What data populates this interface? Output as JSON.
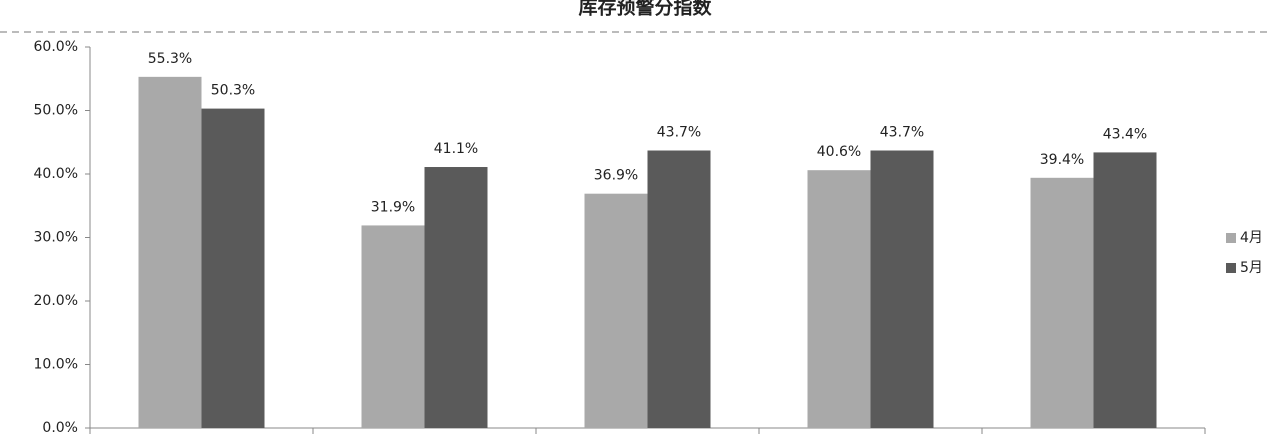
{
  "chart_data": {
    "type": "bar",
    "title": "库存预警分指数",
    "categories": [
      null,
      null,
      null,
      null,
      null
    ],
    "series": [
      {
        "name": "4月",
        "color": "#a9a9a9",
        "values": [
          55.3,
          31.9,
          36.9,
          40.6,
          39.4
        ],
        "value_labels": [
          "55.3%",
          "31.9%",
          "36.9%",
          "40.6%",
          "39.4%"
        ]
      },
      {
        "name": "5月",
        "color": "#5a5a5a",
        "values": [
          50.3,
          41.1,
          43.7,
          43.7,
          43.4
        ],
        "value_labels": [
          "50.3%",
          "41.1%",
          "43.7%",
          "43.7%",
          "43.4%"
        ]
      }
    ],
    "ylim": [
      0,
      60
    ],
    "yticks": [
      {
        "value": 0,
        "label": "0.0%"
      },
      {
        "value": 10,
        "label": "10.0%"
      },
      {
        "value": 20,
        "label": "20.0%"
      },
      {
        "value": 30,
        "label": "30.0%"
      },
      {
        "value": 40,
        "label": "40.0%"
      },
      {
        "value": 50,
        "label": "50.0%"
      },
      {
        "value": 60,
        "label": "60.0%"
      }
    ],
    "legend": "right"
  }
}
